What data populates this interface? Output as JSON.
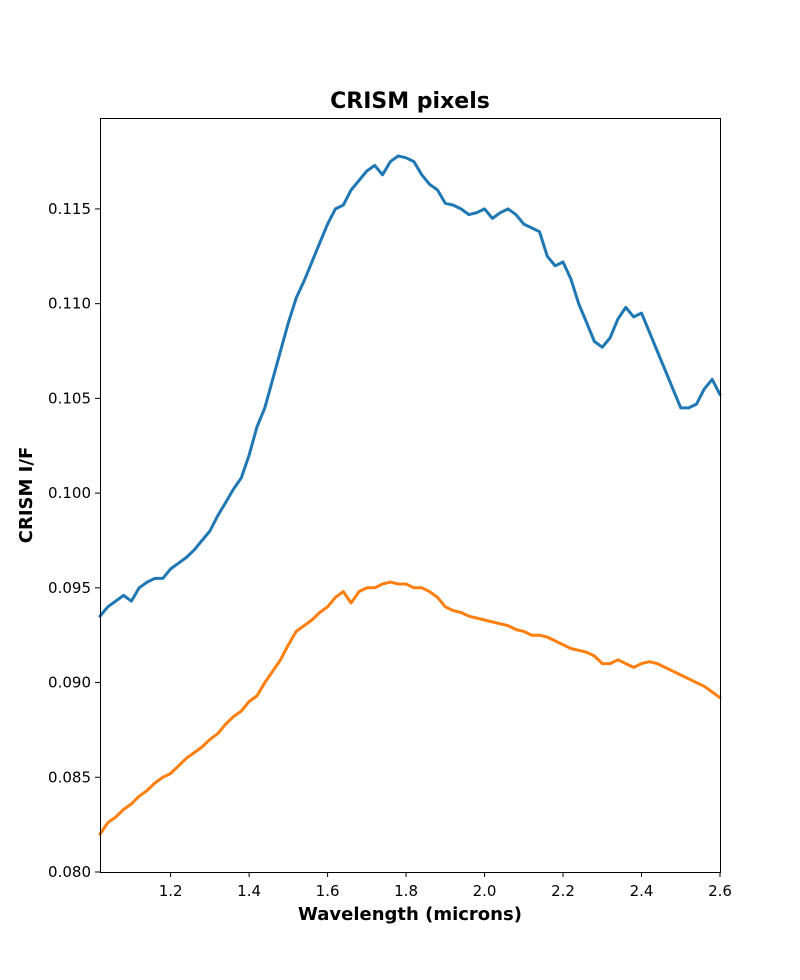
{
  "chart_data": {
    "type": "line",
    "title": "CRISM pixels",
    "xlabel": "Wavelength (microns)",
    "ylabel": "CRISM I/F",
    "xlim": [
      1.02,
      2.6
    ],
    "ylim": [
      0.08,
      0.1198
    ],
    "grid": false,
    "xticks": [
      1.2,
      1.4,
      1.6,
      1.8,
      2.0,
      2.2,
      2.4,
      2.6
    ],
    "xtick_labels": [
      "1.2",
      "1.4",
      "1.6",
      "1.8",
      "2.0",
      "2.2",
      "2.4",
      "2.6"
    ],
    "yticks": [
      0.08,
      0.085,
      0.09,
      0.095,
      0.1,
      0.105,
      0.11,
      0.115
    ],
    "ytick_labels": [
      "0.080",
      "0.085",
      "0.090",
      "0.095",
      "0.100",
      "0.105",
      "0.110",
      "0.115"
    ],
    "series": [
      {
        "color": "#1f77b4",
        "x": [
          1.02,
          1.04,
          1.06,
          1.08,
          1.1,
          1.12,
          1.14,
          1.16,
          1.18,
          1.2,
          1.22,
          1.24,
          1.26,
          1.28,
          1.3,
          1.32,
          1.34,
          1.36,
          1.38,
          1.4,
          1.42,
          1.44,
          1.46,
          1.48,
          1.5,
          1.52,
          1.54,
          1.56,
          1.58,
          1.6,
          1.62,
          1.64,
          1.66,
          1.68,
          1.7,
          1.72,
          1.74,
          1.76,
          1.78,
          1.8,
          1.82,
          1.84,
          1.86,
          1.88,
          1.9,
          1.92,
          1.94,
          1.96,
          1.98,
          2.0,
          2.02,
          2.04,
          2.06,
          2.08,
          2.1,
          2.12,
          2.14,
          2.16,
          2.18,
          2.2,
          2.22,
          2.24,
          2.26,
          2.28,
          2.3,
          2.32,
          2.34,
          2.36,
          2.38,
          2.4,
          2.42,
          2.44,
          2.46,
          2.48,
          2.5,
          2.52,
          2.54,
          2.56,
          2.58,
          2.6
        ],
        "y": [
          0.0935,
          0.094,
          0.0943,
          0.0946,
          0.0943,
          0.095,
          0.0953,
          0.0955,
          0.0955,
          0.096,
          0.0963,
          0.0966,
          0.097,
          0.0975,
          0.098,
          0.0988,
          0.0995,
          0.1002,
          0.1008,
          0.102,
          0.1035,
          0.1045,
          0.106,
          0.1075,
          0.109,
          0.1103,
          0.1112,
          0.1122,
          0.1132,
          0.1142,
          0.115,
          0.1152,
          0.116,
          0.1165,
          0.117,
          0.1173,
          0.1168,
          0.1175,
          0.1178,
          0.1177,
          0.1175,
          0.1168,
          0.1163,
          0.116,
          0.1153,
          0.1152,
          0.115,
          0.1147,
          0.1148,
          0.115,
          0.1145,
          0.1148,
          0.115,
          0.1147,
          0.1142,
          0.114,
          0.1138,
          0.1125,
          0.112,
          0.1122,
          0.1113,
          0.11,
          0.109,
          0.108,
          0.1077,
          0.1082,
          0.1092,
          0.1098,
          0.1093,
          0.1095,
          0.1085,
          0.1075,
          0.1065,
          0.1055,
          0.1045,
          0.1045,
          0.1047,
          0.1055,
          0.106,
          0.1052
        ]
      },
      {
        "color": "#ff7f0e",
        "x": [
          1.02,
          1.04,
          1.06,
          1.08,
          1.1,
          1.12,
          1.14,
          1.16,
          1.18,
          1.2,
          1.22,
          1.24,
          1.26,
          1.28,
          1.3,
          1.32,
          1.34,
          1.36,
          1.38,
          1.4,
          1.42,
          1.44,
          1.46,
          1.48,
          1.5,
          1.52,
          1.54,
          1.56,
          1.58,
          1.6,
          1.62,
          1.64,
          1.66,
          1.68,
          1.7,
          1.72,
          1.74,
          1.76,
          1.78,
          1.8,
          1.82,
          1.84,
          1.86,
          1.88,
          1.9,
          1.92,
          1.94,
          1.96,
          1.98,
          2.0,
          2.02,
          2.04,
          2.06,
          2.08,
          2.1,
          2.12,
          2.14,
          2.16,
          2.18,
          2.2,
          2.22,
          2.24,
          2.26,
          2.28,
          2.3,
          2.32,
          2.34,
          2.36,
          2.38,
          2.4,
          2.42,
          2.44,
          2.46,
          2.48,
          2.5,
          2.52,
          2.54,
          2.56,
          2.58,
          2.6
        ],
        "y": [
          0.082,
          0.0826,
          0.0829,
          0.0833,
          0.0836,
          0.084,
          0.0843,
          0.0847,
          0.085,
          0.0852,
          0.0856,
          0.086,
          0.0863,
          0.0866,
          0.087,
          0.0873,
          0.0878,
          0.0882,
          0.0885,
          0.089,
          0.0893,
          0.09,
          0.0906,
          0.0912,
          0.092,
          0.0927,
          0.093,
          0.0933,
          0.0937,
          0.094,
          0.0945,
          0.0948,
          0.0942,
          0.0948,
          0.095,
          0.095,
          0.0952,
          0.0953,
          0.0952,
          0.0952,
          0.095,
          0.095,
          0.0948,
          0.0945,
          0.094,
          0.0938,
          0.0937,
          0.0935,
          0.0934,
          0.0933,
          0.0932,
          0.0931,
          0.093,
          0.0928,
          0.0927,
          0.0925,
          0.0925,
          0.0924,
          0.0922,
          0.092,
          0.0918,
          0.0917,
          0.0916,
          0.0914,
          0.091,
          0.091,
          0.0912,
          0.091,
          0.0908,
          0.091,
          0.0911,
          0.091,
          0.0908,
          0.0906,
          0.0904,
          0.0902,
          0.09,
          0.0898,
          0.0895,
          0.0892
        ]
      }
    ]
  }
}
